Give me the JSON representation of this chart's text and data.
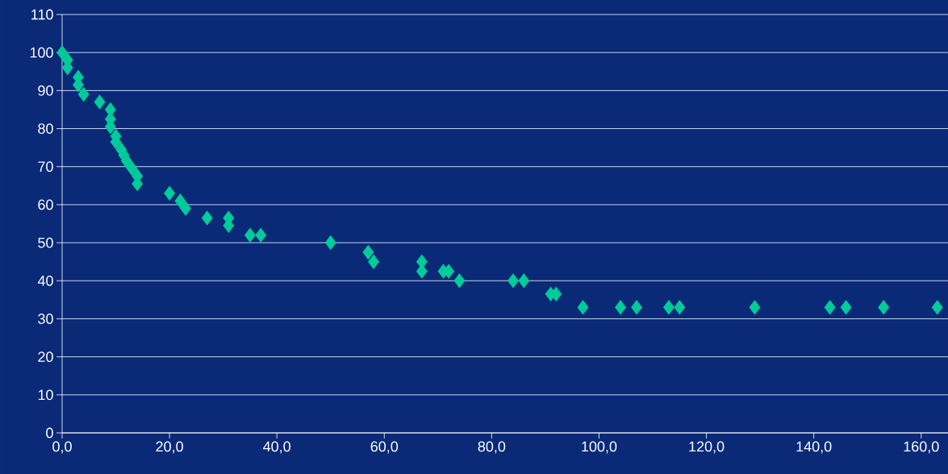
{
  "chart_data": {
    "type": "scatter",
    "marker": "diamond",
    "color": "#00cc99",
    "grid": "y",
    "x": [
      0,
      1,
      1,
      3,
      3,
      4,
      7,
      9,
      9,
      9,
      10,
      10,
      11,
      11.5,
      12,
      13,
      14,
      14,
      20,
      22,
      23,
      27,
      31,
      31,
      35,
      37,
      50,
      57,
      58,
      67,
      67,
      71,
      72,
      74,
      84,
      86,
      91,
      92,
      97,
      104,
      107,
      113,
      115,
      129,
      143,
      146,
      153,
      163
    ],
    "values": [
      100,
      98,
      96,
      93.5,
      91.5,
      89,
      87,
      85,
      82.5,
      80.5,
      78,
      76.5,
      74.5,
      73,
      71.5,
      69.5,
      67.5,
      65.5,
      63,
      61,
      59,
      56.5,
      56.5,
      54.5,
      52,
      52,
      50,
      47.5,
      45,
      45,
      42.5,
      42.5,
      42.5,
      40,
      40,
      40,
      36.5,
      36.5,
      33,
      33,
      33,
      33,
      33,
      33,
      33,
      33,
      33,
      33
    ],
    "xlim": [
      0,
      165
    ],
    "ylim": [
      0,
      110
    ],
    "xticks": [
      {
        "value": 0,
        "label": "0,0"
      },
      {
        "value": 20,
        "label": "20,0"
      },
      {
        "value": 40,
        "label": "40,0"
      },
      {
        "value": 60,
        "label": "60,0"
      },
      {
        "value": 80,
        "label": "80,0"
      },
      {
        "value": 100,
        "label": "100,0"
      },
      {
        "value": 120,
        "label": "120,0"
      },
      {
        "value": 140,
        "label": "140,0"
      },
      {
        "value": 160,
        "label": "160,0"
      }
    ],
    "yticks": [
      0,
      10,
      20,
      30,
      40,
      50,
      60,
      70,
      80,
      90,
      100,
      110
    ]
  }
}
